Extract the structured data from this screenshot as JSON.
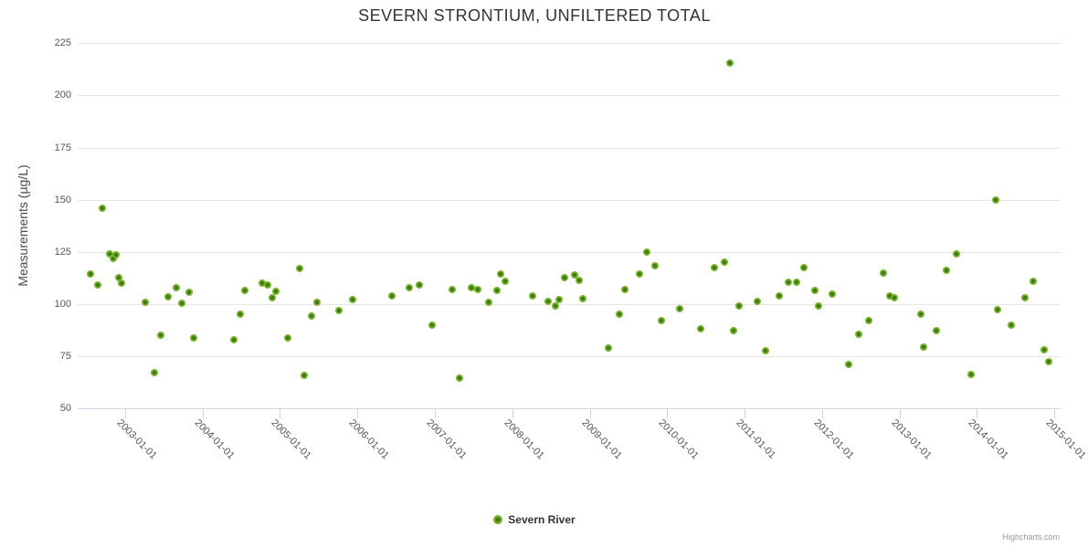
{
  "chart": {
    "credits": "Highcharts.com"
  },
  "chart_data": {
    "type": "scatter",
    "title": "SEVERN STRONTIUM, UNFILTERED TOTAL",
    "xlabel": "",
    "ylabel": "Measurements (µg/L)",
    "ylim": [
      50,
      225
    ],
    "y_ticks": [
      50,
      75,
      100,
      125,
      150,
      175,
      200,
      225
    ],
    "xlim": [
      2002.39,
      2015.08
    ],
    "x_ticks": [
      {
        "year": 2003,
        "label": "2003-01-01"
      },
      {
        "year": 2004,
        "label": "2004-01-01"
      },
      {
        "year": 2005,
        "label": "2005-01-01"
      },
      {
        "year": 2006,
        "label": "2006-01-01"
      },
      {
        "year": 2007,
        "label": "2007-01-01"
      },
      {
        "year": 2008,
        "label": "2008-01-01"
      },
      {
        "year": 2009,
        "label": "2009-01-01"
      },
      {
        "year": 2010,
        "label": "2010-01-01"
      },
      {
        "year": 2011,
        "label": "2011-01-01"
      },
      {
        "year": 2012,
        "label": "2012-01-01"
      },
      {
        "year": 2013,
        "label": "2013-01-01"
      },
      {
        "year": 2014,
        "label": "2014-01-01"
      },
      {
        "year": 2015,
        "label": "2015-01-01"
      }
    ],
    "grid": true,
    "legend_position": "bottom",
    "grid_color": "#e6e6e6",
    "axis_color": "#ccd6eb",
    "series": [
      {
        "name": "Severn River",
        "marker_color": "#76b62a",
        "marker_center_color": "#3e7a10",
        "points": [
          [
            2002.56,
            114.5
          ],
          [
            2002.65,
            109
          ],
          [
            2002.71,
            146
          ],
          [
            2002.8,
            124
          ],
          [
            2002.85,
            122
          ],
          [
            2002.89,
            123.5
          ],
          [
            2002.92,
            112.5
          ],
          [
            2002.96,
            110
          ],
          [
            2003.26,
            101
          ],
          [
            2003.38,
            67
          ],
          [
            2003.46,
            85
          ],
          [
            2003.56,
            103.5
          ],
          [
            2003.66,
            108
          ],
          [
            2003.73,
            100.5
          ],
          [
            2003.83,
            105.5
          ],
          [
            2003.89,
            84
          ],
          [
            2004.41,
            83
          ],
          [
            2004.49,
            95
          ],
          [
            2004.55,
            106.5
          ],
          [
            2004.77,
            110
          ],
          [
            2004.84,
            109
          ],
          [
            2004.9,
            103
          ],
          [
            2004.95,
            106
          ],
          [
            2005.1,
            84
          ],
          [
            2005.25,
            117
          ],
          [
            2005.32,
            66
          ],
          [
            2005.41,
            94.5
          ],
          [
            2005.48,
            101
          ],
          [
            2005.76,
            97
          ],
          [
            2005.94,
            102
          ],
          [
            2006.45,
            104
          ],
          [
            2006.67,
            108
          ],
          [
            2006.8,
            109
          ],
          [
            2006.96,
            90
          ],
          [
            2007.23,
            107
          ],
          [
            2007.32,
            64.5
          ],
          [
            2007.47,
            108
          ],
          [
            2007.56,
            107
          ],
          [
            2007.7,
            101
          ],
          [
            2007.8,
            106.5
          ],
          [
            2007.85,
            114.5
          ],
          [
            2007.91,
            111
          ],
          [
            2008.26,
            104
          ],
          [
            2008.46,
            101.5
          ],
          [
            2008.56,
            99
          ],
          [
            2008.61,
            102
          ],
          [
            2008.68,
            112.5
          ],
          [
            2008.8,
            114
          ],
          [
            2008.86,
            111.5
          ],
          [
            2008.91,
            102.5
          ],
          [
            2009.24,
            79
          ],
          [
            2009.38,
            95
          ],
          [
            2009.45,
            107
          ],
          [
            2009.64,
            114.5
          ],
          [
            2009.74,
            125
          ],
          [
            2009.84,
            118.5
          ],
          [
            2009.93,
            92
          ],
          [
            2010.16,
            98
          ],
          [
            2010.43,
            88
          ],
          [
            2010.61,
            117.5
          ],
          [
            2010.74,
            120
          ],
          [
            2010.81,
            215.5
          ],
          [
            2010.86,
            87.5
          ],
          [
            2010.93,
            99
          ],
          [
            2011.16,
            101.5
          ],
          [
            2011.27,
            77.5
          ],
          [
            2011.45,
            104
          ],
          [
            2011.56,
            110.5
          ],
          [
            2011.67,
            110.5
          ],
          [
            2011.77,
            117.5
          ],
          [
            2011.91,
            106.5
          ],
          [
            2011.95,
            99
          ],
          [
            2012.13,
            105
          ],
          [
            2012.34,
            71
          ],
          [
            2012.47,
            85.5
          ],
          [
            2012.6,
            92
          ],
          [
            2012.79,
            115
          ],
          [
            2012.87,
            104
          ],
          [
            2012.93,
            103
          ],
          [
            2013.27,
            95
          ],
          [
            2013.31,
            79.5
          ],
          [
            2013.47,
            87.5
          ],
          [
            2013.61,
            116
          ],
          [
            2013.73,
            124
          ],
          [
            2013.92,
            66.5
          ],
          [
            2014.24,
            150
          ],
          [
            2014.26,
            97.5
          ],
          [
            2014.44,
            90
          ],
          [
            2014.62,
            103
          ],
          [
            2014.72,
            111
          ],
          [
            2014.87,
            78
          ],
          [
            2014.93,
            72.5
          ]
        ]
      }
    ]
  }
}
